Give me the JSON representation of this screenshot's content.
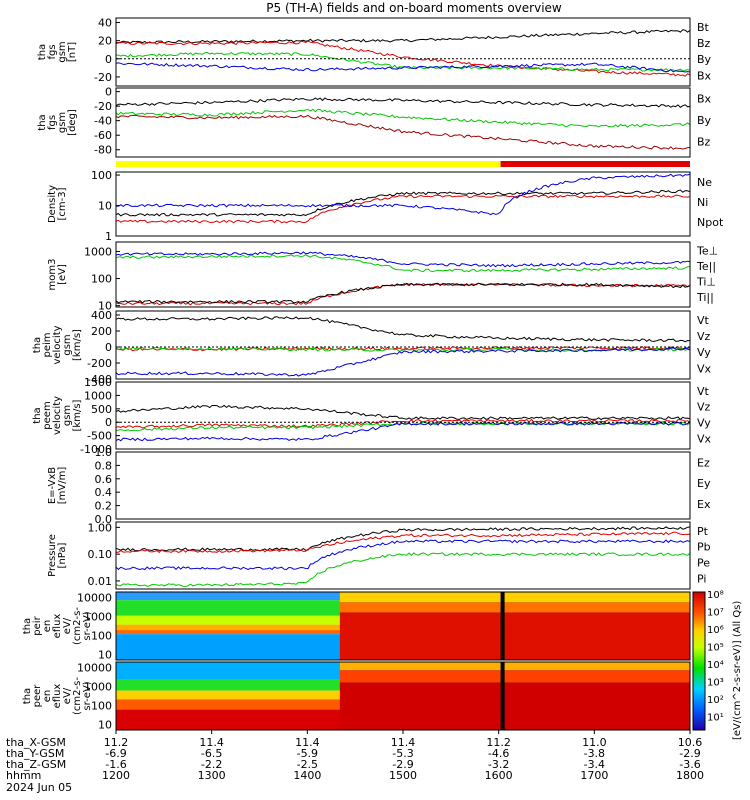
{
  "title": "P5 (TH-A) fields and on-board moments overview",
  "panels": [
    {
      "ylabel": [
        "tha",
        "fgs",
        "gsm",
        "[nT]"
      ],
      "ticks": [
        "40",
        "20",
        "0",
        "-20"
      ],
      "legend": [
        {
          "text": "Bt",
          "color": "#000000"
        },
        {
          "text": "Bz",
          "color": "#e00000"
        },
        {
          "text": "By",
          "color": "#00c800"
        },
        {
          "text": "Bx",
          "color": "#0000e0"
        }
      ]
    },
    {
      "ylabel": [
        "tha",
        "fgs",
        "gsm",
        "[deg]"
      ],
      "ticks": [
        "0",
        "-20",
        "-40",
        "-60",
        "-80"
      ],
      "legend": [
        {
          "text": "Bx",
          "color": "#000000"
        },
        {
          "text": "By",
          "color": "#00c800"
        },
        {
          "text": "Bz",
          "color": "#a00000"
        }
      ]
    },
    {
      "ylabel": [
        "Density",
        "[cm-3]"
      ],
      "ticks": [
        "100",
        "10",
        "1"
      ],
      "legend": [
        {
          "text": "Ne",
          "color": "#e00000"
        },
        {
          "text": "Ni",
          "color": "#000000"
        },
        {
          "text": "Npot",
          "color": "#0000e0"
        }
      ]
    },
    {
      "ylabel": [
        "mom3",
        "[eV]"
      ],
      "ticks": [
        "1000",
        "100",
        "10"
      ],
      "legend": [
        {
          "text": "Te⊥",
          "color": "#e00000"
        },
        {
          "text": "Te||",
          "color": "#000000"
        },
        {
          "text": "Ti⊥",
          "color": "#0000e0"
        },
        {
          "text": "Ti||",
          "color": "#00c800"
        }
      ]
    },
    {
      "ylabel": [
        "tha",
        "peim",
        "velocity",
        "gsm",
        "[km/s]"
      ],
      "ticks": [
        "400",
        "200",
        "0",
        "-200",
        "-400"
      ],
      "legend": [
        {
          "text": "Vt",
          "color": "#000000"
        },
        {
          "text": "Vz",
          "color": "#e00000"
        },
        {
          "text": "Vy",
          "color": "#00c800"
        },
        {
          "text": "Vx",
          "color": "#0000e0"
        }
      ]
    },
    {
      "ylabel": [
        "tha",
        "peem",
        "velocity",
        "gsm",
        "[km/s]"
      ],
      "ticks": [
        "1500",
        "1000",
        "500",
        "0",
        "-500",
        "-1000"
      ],
      "legend": [
        {
          "text": "Vt",
          "color": "#000000"
        },
        {
          "text": "Vz",
          "color": "#e00000"
        },
        {
          "text": "Vy",
          "color": "#00c800"
        },
        {
          "text": "Vx",
          "color": "#0000e0"
        }
      ]
    },
    {
      "ylabel": [
        "E=-VxB",
        "[mV/m]"
      ],
      "ticks": [
        "1.0",
        "0.8",
        "0.6",
        "0.4",
        "0.2",
        "0.0"
      ],
      "legend": [
        {
          "text": "Ez",
          "color": "#e00000"
        },
        {
          "text": "Ey",
          "color": "#00c800"
        },
        {
          "text": "Ex",
          "color": "#0000e0"
        }
      ]
    },
    {
      "ylabel": [
        "Pressure",
        "[nPa]"
      ],
      "ticks": [
        "1.00",
        "0.10",
        "0.01"
      ],
      "legend": [
        {
          "text": "Pt",
          "color": "#000000"
        },
        {
          "text": "Pb",
          "color": "#e00000"
        },
        {
          "text": "Pe",
          "color": "#00c800"
        },
        {
          "text": "Pi",
          "color": "#0000e0"
        }
      ]
    },
    {
      "ylabel": [
        "tha",
        "peir",
        "en",
        "eflux",
        "eV/",
        "(cm2-s-",
        "sr-eV)"
      ],
      "ticks": [
        "10000",
        "1000",
        "100",
        "10"
      ],
      "legend": []
    },
    {
      "ylabel": [
        "tha",
        "peer",
        "en",
        "eflux",
        "eV/",
        "(cm2-s-",
        "sr-eV)"
      ],
      "ticks": [
        "10000",
        "1000",
        "100",
        "10"
      ],
      "legend": []
    }
  ],
  "colorbar": {
    "label": "[eV/(cm^2-s-sr-eV)] (All Qs)",
    "ticks": [
      "10⁸",
      "10⁷",
      "10⁶",
      "10⁵",
      "10⁴",
      "10³",
      "10²",
      "10¹"
    ]
  },
  "axis": {
    "row_labels": [
      "tha_X-GSM",
      "tha_Y-GSM",
      "tha_Z-GSM",
      "hhmm",
      "2024 Jun 05"
    ],
    "columns": [
      [
        "11.2",
        "-6.9",
        "-1.6",
        "1200"
      ],
      [
        "11.4",
        "-6.5",
        "-2.2",
        "1300"
      ],
      [
        "11.4",
        "-5.9",
        "-2.5",
        "1400"
      ],
      [
        "11.4",
        "-5.3",
        "-2.9",
        "1500"
      ],
      [
        "11.2",
        "-4.6",
        "-3.2",
        "1600"
      ],
      [
        "11.0",
        "-3.8",
        "-3.4",
        "1700"
      ],
      [
        "10.6",
        "-2.9",
        "-3.6",
        "1800"
      ]
    ]
  },
  "chart_data": {
    "type": "line",
    "title": "P5 (TH-A) fields and on-board moments overview",
    "x_time_range": [
      "12:00",
      "18:00"
    ],
    "x_ticks": [
      "1200",
      "1300",
      "1400",
      "1500",
      "1600",
      "1700",
      "1800"
    ],
    "date": "2024 Jun 05",
    "panels": [
      {
        "name": "fgs gsm B",
        "unit": "nT",
        "ylim": [
          -30,
          45
        ],
        "series": [
          {
            "name": "Bt",
            "values_hourly": [
              18,
              19,
              20,
              20,
              24,
              28,
              31
            ]
          },
          {
            "name": "Bz",
            "values_hourly": [
              17,
              17,
              18,
              2,
              -8,
              -14,
              -18
            ]
          },
          {
            "name": "By",
            "values_hourly": [
              3,
              6,
              5,
              -10,
              -10,
              -12,
              -12
            ]
          },
          {
            "name": "Bx",
            "values_hourly": [
              -5,
              -8,
              -12,
              -10,
              -8,
              -6,
              -15
            ]
          }
        ]
      },
      {
        "name": "fgs gsm angles",
        "unit": "deg",
        "ylim": [
          -90,
          5
        ],
        "series": [
          {
            "name": "Bx",
            "values_hourly": [
              -18,
              -15,
              -10,
              -12,
              -15,
              -18,
              -20
            ]
          },
          {
            "name": "By",
            "values_hourly": [
              -30,
              -32,
              -25,
              -35,
              -42,
              -48,
              -45
            ]
          },
          {
            "name": "Bz",
            "values_hourly": [
              -34,
              -36,
              -34,
              -55,
              -65,
              -75,
              -78
            ]
          }
        ]
      },
      {
        "name": "Density",
        "unit": "cm-3",
        "scale": "log",
        "ylim": [
          1,
          100
        ],
        "series": [
          {
            "name": "Ne",
            "values_hourly": [
              3,
              3,
              3,
              20,
              20,
              20,
              20
            ]
          },
          {
            "name": "Ni",
            "values_hourly": [
              5,
              5,
              5,
              25,
              25,
              25,
              30
            ]
          },
          {
            "name": "Npot",
            "values_hourly": [
              10,
              10,
              10,
              10,
              5,
              80,
              100
            ]
          }
        ]
      },
      {
        "name": "mom3",
        "unit": "eV",
        "scale": "log",
        "ylim": [
          10,
          2000
        ],
        "series": [
          {
            "name": "Te⊥",
            "values_hourly": [
              12,
              12,
              12,
              60,
              60,
              55,
              55
            ]
          },
          {
            "name": "Te||",
            "values_hourly": [
              14,
              14,
              14,
              60,
              60,
              60,
              50
            ]
          },
          {
            "name": "Ti⊥",
            "values_hourly": [
              800,
              800,
              900,
              350,
              300,
              350,
              400
            ]
          },
          {
            "name": "Ti||",
            "values_hourly": [
              600,
              650,
              700,
              200,
              200,
              220,
              250
            ]
          }
        ]
      },
      {
        "name": "peim velocity gsm",
        "unit": "km/s",
        "ylim": [
          -400,
          450
        ],
        "series": [
          {
            "name": "Vt",
            "values_hourly": [
              350,
              350,
              370,
              150,
              110,
              90,
              80
            ]
          },
          {
            "name": "Vz",
            "values_hourly": [
              -30,
              -30,
              -20,
              -20,
              -10,
              -10,
              -10
            ]
          },
          {
            "name": "Vy",
            "values_hourly": [
              -20,
              -20,
              -30,
              -40,
              -30,
              -40,
              -30
            ]
          },
          {
            "name": "Vx",
            "values_hourly": [
              -330,
              -330,
              -350,
              -60,
              -50,
              -40,
              -20
            ]
          }
        ]
      },
      {
        "name": "peem velocity gsm",
        "unit": "km/s",
        "ylim": [
          -1000,
          1500
        ],
        "series": [
          {
            "name": "Vt",
            "values_hourly": [
              400,
              600,
              500,
              150,
              150,
              150,
              150
            ]
          },
          {
            "name": "Vz",
            "values_hourly": [
              -200,
              -100,
              -150,
              50,
              50,
              50,
              50
            ]
          },
          {
            "name": "Vy",
            "values_hourly": [
              -300,
              -200,
              -200,
              -50,
              -50,
              -50,
              -50
            ]
          },
          {
            "name": "Vx",
            "values_hourly": [
              -650,
              -600,
              -650,
              -60,
              -60,
              -60,
              -60
            ]
          }
        ]
      },
      {
        "name": "E=-VxB",
        "unit": "mV/m",
        "ylim": [
          0,
          1.0
        ],
        "series": []
      },
      {
        "name": "Pressure",
        "unit": "nPa",
        "scale": "log",
        "ylim": [
          0.005,
          1.5
        ],
        "series": [
          {
            "name": "Pt",
            "values_hourly": [
              0.15,
              0.15,
              0.15,
              0.8,
              0.85,
              0.9,
              0.95
            ]
          },
          {
            "name": "Pb",
            "values_hourly": [
              0.13,
              0.13,
              0.14,
              0.5,
              0.5,
              0.55,
              0.6
            ]
          },
          {
            "name": "Pe",
            "values_hourly": [
              0.007,
              0.007,
              0.008,
              0.1,
              0.1,
              0.1,
              0.1
            ]
          },
          {
            "name": "Pi",
            "values_hourly": [
              0.03,
              0.03,
              0.03,
              0.3,
              0.3,
              0.3,
              0.3
            ]
          }
        ]
      }
    ],
    "spectrograms": [
      {
        "name": "peir en eflux",
        "unit": "eV/(cm2-s-sr-eV)",
        "ylim": [
          5,
          20000
        ],
        "scale": "log"
      },
      {
        "name": "peer en eflux",
        "unit": "eV/(cm2-s-sr-eV)",
        "ylim": [
          5,
          20000
        ],
        "scale": "log"
      }
    ],
    "colorbar_range": [
      10,
      100000000
    ]
  }
}
